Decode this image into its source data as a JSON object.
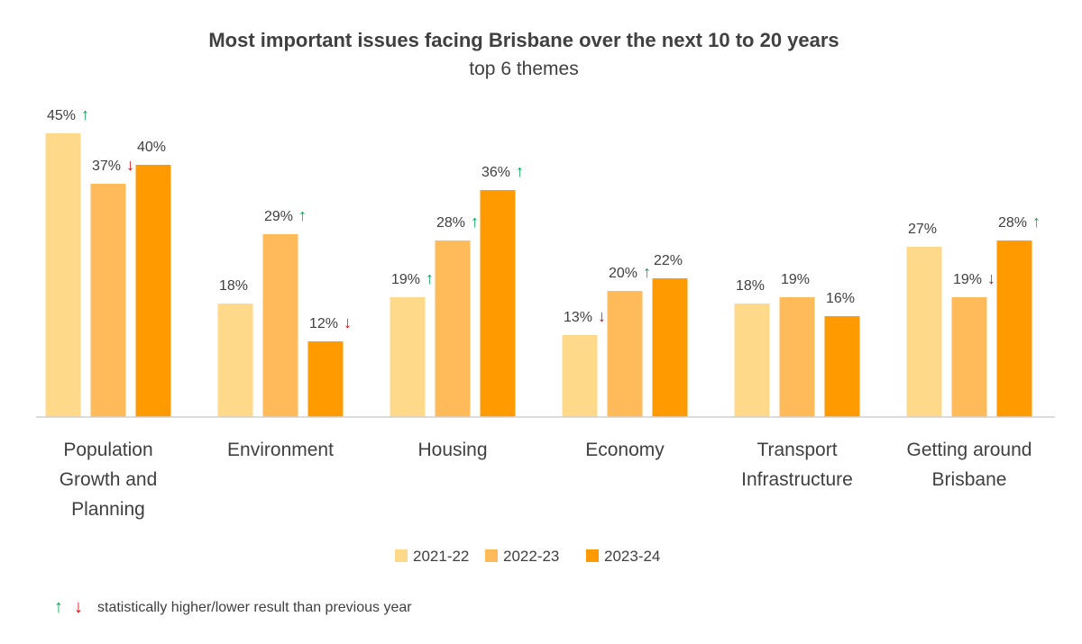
{
  "chart_data": {
    "type": "bar",
    "title": "Most important issues facing Brisbane over the next 10 to 20 years",
    "subtitle": "top 6 themes",
    "categories": [
      [
        "Population",
        "Growth and",
        "Planning"
      ],
      [
        "Environment"
      ],
      [
        "Housing"
      ],
      [
        "Economy"
      ],
      [
        "Transport",
        "Infrastructure"
      ],
      [
        "Getting around",
        "Brisbane"
      ]
    ],
    "series": [
      {
        "name": "2021-22",
        "color": "#FFD98A",
        "values": [
          45,
          18,
          19,
          13,
          18,
          27
        ],
        "labels": [
          "45%",
          "18%",
          "19%",
          "13%",
          "18%",
          "27%"
        ],
        "arrows": [
          "up",
          null,
          "up",
          "down",
          null,
          null
        ]
      },
      {
        "name": "2022-23",
        "color": "#FFBA5A",
        "values": [
          37,
          29,
          28,
          20,
          19,
          19
        ],
        "labels": [
          "37%",
          "29%",
          "28%",
          "20%",
          "19%",
          "19%"
        ],
        "arrows": [
          "down",
          "up",
          "up",
          "up",
          null,
          "down"
        ]
      },
      {
        "name": "2023-24",
        "color": "#FF9A00",
        "values": [
          40,
          12,
          36,
          22,
          16,
          28
        ],
        "labels": [
          "40%",
          "12%",
          "36%",
          "22%",
          "16%",
          "28%"
        ],
        "arrows": [
          null,
          "down",
          "up",
          null,
          null,
          "up"
        ]
      }
    ],
    "ylim": [
      0,
      45
    ],
    "xlabel": "",
    "ylabel": "",
    "grid": false,
    "legend_position": "bottom",
    "arrow_up_symbol": "↑",
    "arrow_down_symbol": "↓",
    "arrow_up_color": "#00A550",
    "arrow_down_color": "#E8000B",
    "footnote": "statistically higher/lower result than previous year"
  }
}
